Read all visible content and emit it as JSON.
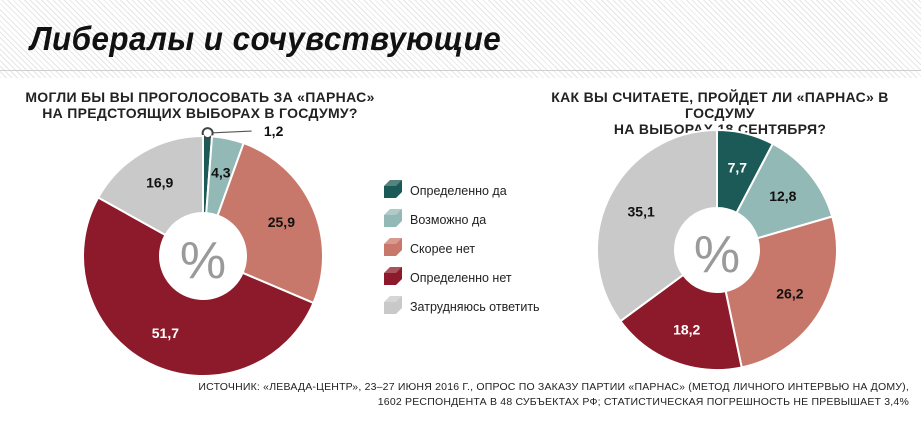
{
  "title": "Либералы и сочувствующие",
  "charts": [
    {
      "question_line1": "МОГЛИ БЫ ВЫ ПРОГОЛОСОВАТЬ ЗА «ПАРНАС»",
      "question_line2": "НА ПРЕДСТОЯЩИХ ВЫБОРАХ В ГОСДУМУ?"
    },
    {
      "question_line1": "КАК ВЫ СЧИТАЕТЕ, ПРОЙДЕТ ЛИ «ПАРНАС» В ГОСДУМУ",
      "question_line2": "НА ВЫБОРАХ 18 СЕНТЯБРЯ?"
    }
  ],
  "center_symbol": "%",
  "legend": [
    {
      "label": "Определенно да",
      "color": "#1b5a56"
    },
    {
      "label": "Возможно да",
      "color": "#93b9b7"
    },
    {
      "label": "Скорее нет",
      "color": "#c8786a"
    },
    {
      "label": "Определенно нет",
      "color": "#8d1a2a"
    },
    {
      "label": "Затрудняюсь ответить",
      "color": "#c9c9c9"
    }
  ],
  "chart_data": [
    {
      "type": "pie",
      "title": "МОГЛИ БЫ ВЫ ПРОГОЛОСОВАТЬ ЗА «ПАРНАС» НА ПРЕДСТОЯЩИХ ВЫБОРАХ В ГОСДУМУ?",
      "categories": [
        "Определенно да",
        "Возможно да",
        "Скорее нет",
        "Определенно нет",
        "Затрудняюсь ответить"
      ],
      "values": [
        1.2,
        4.3,
        25.9,
        51.7,
        16.9
      ],
      "labels": [
        "1,2",
        "4,3",
        "25,9",
        "51,7",
        "16,9"
      ],
      "colors": [
        "#1b5a56",
        "#93b9b7",
        "#c8786a",
        "#8d1a2a",
        "#c9c9c9"
      ]
    },
    {
      "type": "pie",
      "title": "КАК ВЫ СЧИТАЕТЕ, ПРОЙДЕТ ЛИ «ПАРНАС» В ГОСДУМУ НА ВЫБОРАХ 18 СЕНТЯБРЯ?",
      "categories": [
        "Определенно да",
        "Возможно да",
        "Скорее нет",
        "Определенно нет",
        "Затрудняюсь ответить"
      ],
      "values": [
        7.7,
        12.8,
        26.2,
        18.2,
        35.1
      ],
      "labels": [
        "7,7",
        "12,8",
        "26,2",
        "18,2",
        "35,1"
      ],
      "colors": [
        "#1b5a56",
        "#93b9b7",
        "#c8786a",
        "#8d1a2a",
        "#c9c9c9"
      ]
    }
  ],
  "source_line1": "ИСТОЧНИК: «ЛЕВАДА-ЦЕНТР», 23–27 ИЮНЯ 2016 Г., ОПРОС ПО ЗАКАЗУ ПАРТИИ «ПАРНАС» (МЕТОД ЛИЧНОГО ИНТЕРВЬЮ НА ДОМУ),",
  "source_line2": "1602 РЕСПОНДЕНТА В 48 СУБЪЕКТАХ РФ; СТАТИСТИЧЕСКАЯ ПОГРЕШНОСТЬ НЕ ПРЕВЫШАЕТ 3,4%"
}
